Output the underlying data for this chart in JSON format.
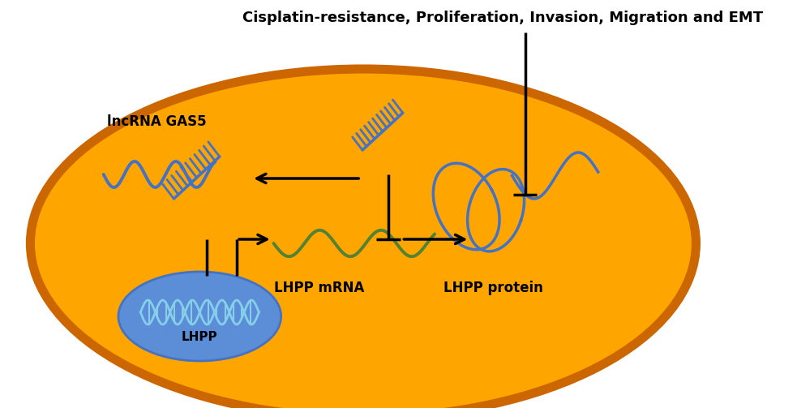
{
  "title": "Cisplatin-resistance, Proliferation, Invasion, Migration and EMT",
  "title_fontsize": 13,
  "title_fontweight": "bold",
  "background_color": "#ffffff",
  "cell_fill": "#FFA500",
  "cell_edge": "#CC6600",
  "nucleus_fill": "#5B8ED6",
  "nucleus_edge": "#4472C4",
  "lncrna_label": "lncRNA GAS5",
  "lhpp_mrna_label": "LHPP mRNA",
  "lhpp_protein_label": "LHPP protein",
  "lhpp_nucleus_label": "LHPP",
  "rna_color": "#4472C4",
  "mrna_color": "#548235",
  "arrow_color": "#000000",
  "figwidth": 9.83,
  "figheight": 5.03,
  "dpi": 100
}
